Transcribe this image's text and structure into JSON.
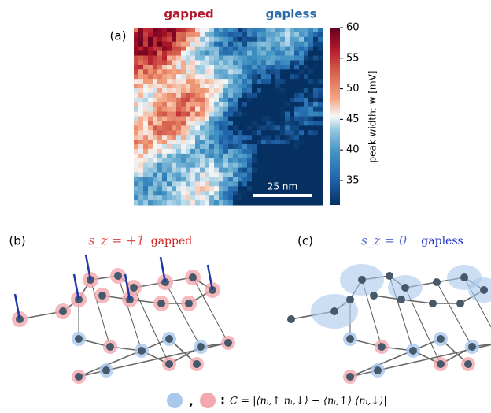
{
  "panel_a": {
    "label": "(a)",
    "title_left": "gapped",
    "title_right": "gapless",
    "scale_bar": "25 nm",
    "colorbar": {
      "label": "peak width: w [mV]",
      "lim": [
        31,
        60
      ],
      "ticks": [
        35,
        40,
        45,
        50,
        55,
        60
      ]
    }
  },
  "panel_b": {
    "label": "(b)",
    "spin": "s_z = +1",
    "state": "gapped"
  },
  "panel_c": {
    "label": "(c)",
    "spin": "s_z = 0",
    "state": "gapless"
  },
  "legend": {
    "separator": ",",
    "colon": ":",
    "formula": "C = |⟨nᵢ,↑ nᵢ,↓⟩ − ⟨nᵢ,↑⟩ ⟨nᵢ,↓⟩|"
  }
}
